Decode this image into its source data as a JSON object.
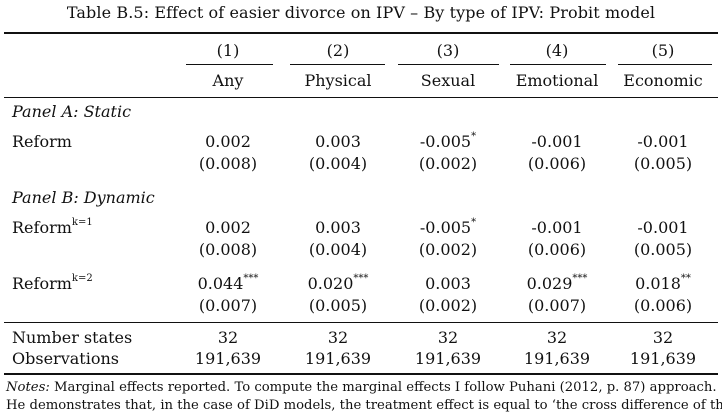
{
  "table": {
    "title": "Table B.5: Effect of easier divorce on IPV – By type of IPV: Probit model",
    "columns": [
      {
        "num": "(1)",
        "name": "Any"
      },
      {
        "num": "(2)",
        "name": "Physical"
      },
      {
        "num": "(3)",
        "name": "Sexual"
      },
      {
        "num": "(4)",
        "name": "Emotional"
      },
      {
        "num": "(5)",
        "name": "Economic"
      }
    ],
    "panel_a": {
      "label": "Panel A: Static",
      "rows": [
        {
          "label": "Reform",
          "sup": "",
          "coefs": [
            {
              "v": "0.002",
              "s": ""
            },
            {
              "v": "0.003",
              "s": ""
            },
            {
              "v": "-0.005",
              "s": "*"
            },
            {
              "v": "-0.001",
              "s": ""
            },
            {
              "v": "-0.001",
              "s": ""
            }
          ],
          "ses": [
            "(0.008)",
            "(0.004)",
            "(0.002)",
            "(0.006)",
            "(0.005)"
          ]
        }
      ]
    },
    "panel_b": {
      "label": "Panel B: Dynamic",
      "rows": [
        {
          "label": "Reform",
          "sup": "k=1",
          "coefs": [
            {
              "v": "0.002",
              "s": ""
            },
            {
              "v": "0.003",
              "s": ""
            },
            {
              "v": "-0.005",
              "s": "*"
            },
            {
              "v": "-0.001",
              "s": ""
            },
            {
              "v": "-0.001",
              "s": ""
            }
          ],
          "ses": [
            "(0.008)",
            "(0.004)",
            "(0.002)",
            "(0.006)",
            "(0.005)"
          ]
        },
        {
          "label": "Reform",
          "sup": "k=2",
          "coefs": [
            {
              "v": "0.044",
              "s": "***"
            },
            {
              "v": "0.020",
              "s": "***"
            },
            {
              "v": "0.003",
              "s": ""
            },
            {
              "v": "0.029",
              "s": "***"
            },
            {
              "v": "0.018",
              "s": "**"
            }
          ],
          "ses": [
            "(0.007)",
            "(0.005)",
            "(0.002)",
            "(0.007)",
            "(0.006)"
          ]
        }
      ]
    },
    "footer_rows": [
      {
        "label": "Number states",
        "values": [
          "32",
          "32",
          "32",
          "32",
          "32"
        ]
      },
      {
        "label": "Observations",
        "values": [
          "191,639",
          "191,639",
          "191,639",
          "191,639",
          "191,639"
        ]
      }
    ],
    "notes": {
      "label": "Notes:",
      "line1": "Marginal effects reported. To compute the marginal effects I follow Puhani (2012, p. 87) approach.",
      "line2": "He demonstrates that, in the case of DiD models, the treatment effect is equal to ‘the cross difference of the"
    }
  }
}
